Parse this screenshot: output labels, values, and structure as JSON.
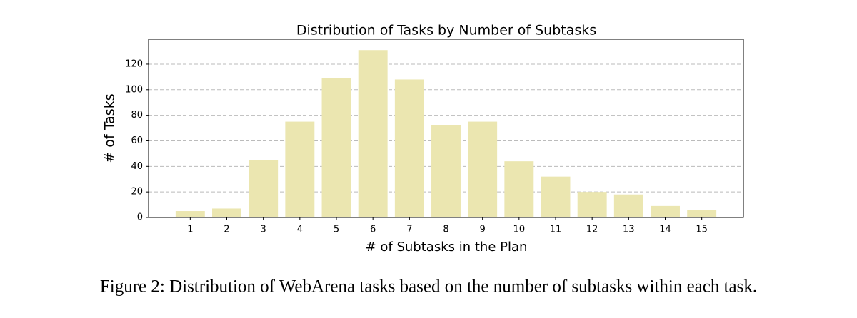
{
  "chart_data": {
    "type": "bar",
    "title": "Distribution of Tasks by Number of Subtasks",
    "x_label": "# of Subtasks in the Plan",
    "y_label": "# of Tasks",
    "categories": [
      "1",
      "2",
      "3",
      "4",
      "5",
      "6",
      "7",
      "8",
      "9",
      "10",
      "11",
      "12",
      "13",
      "14",
      "15"
    ],
    "values": [
      5,
      7,
      45,
      75,
      109,
      131,
      108,
      72,
      75,
      44,
      32,
      20,
      18,
      9,
      6
    ],
    "color": "#ebe6b0",
    "ylim": [
      0,
      139.5
    ],
    "yticks": [
      0,
      20,
      40,
      60,
      80,
      100,
      120
    ],
    "grid": true
  },
  "caption": "Figure 2: Distribution of WebArena tasks based on the number of subtasks within each task."
}
